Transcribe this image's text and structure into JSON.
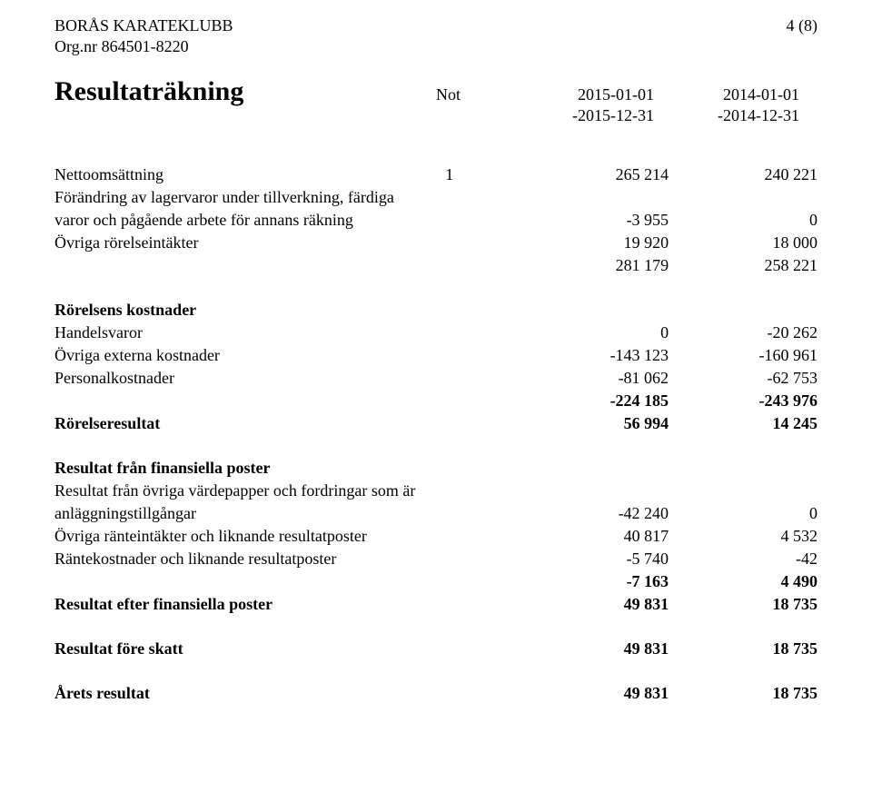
{
  "header": {
    "org_name": "BORÅS KARATEKLUBB",
    "page_no": "4 (8)",
    "org_nr": "Org.nr 864501-8220"
  },
  "title": {
    "section_title": "Resultaträkning",
    "note_label": "Not",
    "period1_line1": "2015-01-01",
    "period1_line2": "-2015-12-31",
    "period2_line1": "2014-01-01",
    "period2_line2": "-2014-12-31"
  },
  "rows": {
    "nettoomsattning": {
      "label": "Nettoomsättning",
      "note": "1",
      "v1": "265 214",
      "v2": "240 221"
    },
    "forandring": {
      "label_l1": "Förändring av lagervaror under tillverkning, färdiga",
      "label_l2": "varor och pågående arbete för annans räkning",
      "v1": "-3 955",
      "v2": "0"
    },
    "ovriga_rorelseintakter": {
      "label": "Övriga rörelseintäkter",
      "v1": "19 920",
      "v2": "18 000"
    },
    "subtotal_intakter": {
      "v1": "281 179",
      "v2": "258 221"
    },
    "rorelsens_kostnader_hdr": {
      "label": "Rörelsens kostnader"
    },
    "handelsvaror": {
      "label": "Handelsvaror",
      "v1": "0",
      "v2": "-20 262"
    },
    "ovriga_externa": {
      "label": "Övriga externa kostnader",
      "v1": "-143 123",
      "v2": "-160 961"
    },
    "personalkostnader": {
      "label": "Personalkostnader",
      "v1": "-81 062",
      "v2": "-62 753"
    },
    "subtotal_kostnader": {
      "v1": "-224 185",
      "v2": "-243 976"
    },
    "rorelseresultat": {
      "label": "Rörelseresultat",
      "v1": "56 994",
      "v2": "14 245"
    },
    "finansiella_hdr": {
      "label": "Resultat från finansiella poster"
    },
    "ovriga_vardepapper": {
      "label_l1": "Resultat från övriga värdepapper och fordringar som är",
      "label_l2": "anläggningstillgångar",
      "v1": "-42 240",
      "v2": "0"
    },
    "ranteintakter": {
      "label": "Övriga ränteintäkter och liknande resultatposter",
      "v1": "40 817",
      "v2": "4 532"
    },
    "rantekostnader": {
      "label": "Räntekostnader och liknande resultatposter",
      "v1": "-5 740",
      "v2": "-42"
    },
    "subtotal_finansiella": {
      "v1": "-7 163",
      "v2": "4 490"
    },
    "resultat_efter_fin": {
      "label": "Resultat efter finansiella poster",
      "v1": "49 831",
      "v2": "18 735"
    },
    "resultat_fore_skatt": {
      "label": "Resultat före skatt",
      "v1": "49 831",
      "v2": "18 735"
    },
    "arets_resultat": {
      "label": "Årets resultat",
      "v1": "49 831",
      "v2": "18 735"
    }
  }
}
